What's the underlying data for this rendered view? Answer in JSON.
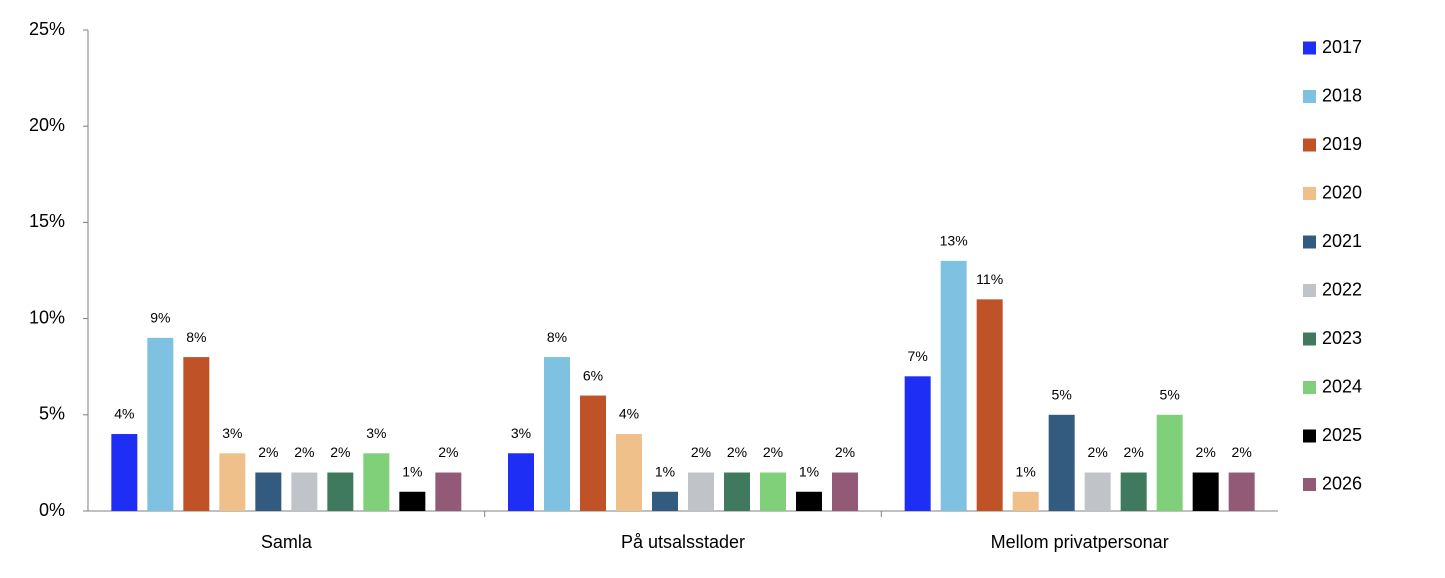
{
  "chart_data": {
    "type": "bar",
    "categories": [
      "Samla",
      "På utsalsstader",
      "Mellom privatpersonar"
    ],
    "series": [
      {
        "name": "2017",
        "color": "#1f2ef5",
        "values": [
          4,
          3,
          7
        ],
        "value_labels": [
          "4%",
          "3%",
          "7%"
        ]
      },
      {
        "name": "2018",
        "color": "#7fc1e0",
        "values": [
          9,
          8,
          13
        ],
        "value_labels": [
          "9%",
          "8%",
          "13%"
        ]
      },
      {
        "name": "2019",
        "color": "#bf5226",
        "values": [
          8,
          6,
          11
        ],
        "value_labels": [
          "8%",
          "6%",
          "11%"
        ]
      },
      {
        "name": "2020",
        "color": "#f0c08a",
        "values": [
          3,
          4,
          1
        ],
        "value_labels": [
          "3%",
          "4%",
          "1%"
        ]
      },
      {
        "name": "2021",
        "color": "#335a7f",
        "values": [
          2,
          1,
          5
        ],
        "value_labels": [
          "2%",
          "1%",
          "5%"
        ]
      },
      {
        "name": "2022",
        "color": "#c0c3c7",
        "values": [
          2,
          2,
          2
        ],
        "value_labels": [
          "2%",
          "2%",
          "2%"
        ]
      },
      {
        "name": "2023",
        "color": "#3f7a5f",
        "values": [
          2,
          2,
          2
        ],
        "value_labels": [
          "2%",
          "2%",
          "2%"
        ]
      },
      {
        "name": "2024",
        "color": "#80d07a",
        "values": [
          3,
          2,
          5
        ],
        "value_labels": [
          "3%",
          "2%",
          "5%"
        ]
      },
      {
        "name": "2025",
        "color": "#000000",
        "values": [
          1,
          1,
          2
        ],
        "value_labels": [
          "1%",
          "1%",
          "2%"
        ]
      },
      {
        "name": "2026",
        "color": "#935a78",
        "values": [
          2,
          2,
          2
        ],
        "value_labels": [
          "2%",
          "2%",
          "2%"
        ]
      }
    ],
    "ylim": [
      0,
      25
    ],
    "yticks": [
      {
        "value": 0,
        "label": "0%"
      },
      {
        "value": 5,
        "label": "5%"
      },
      {
        "value": 10,
        "label": "10%"
      },
      {
        "value": 15,
        "label": "15%"
      },
      {
        "value": 20,
        "label": "20%"
      },
      {
        "value": 25,
        "label": "25%"
      }
    ],
    "legend": "right"
  }
}
